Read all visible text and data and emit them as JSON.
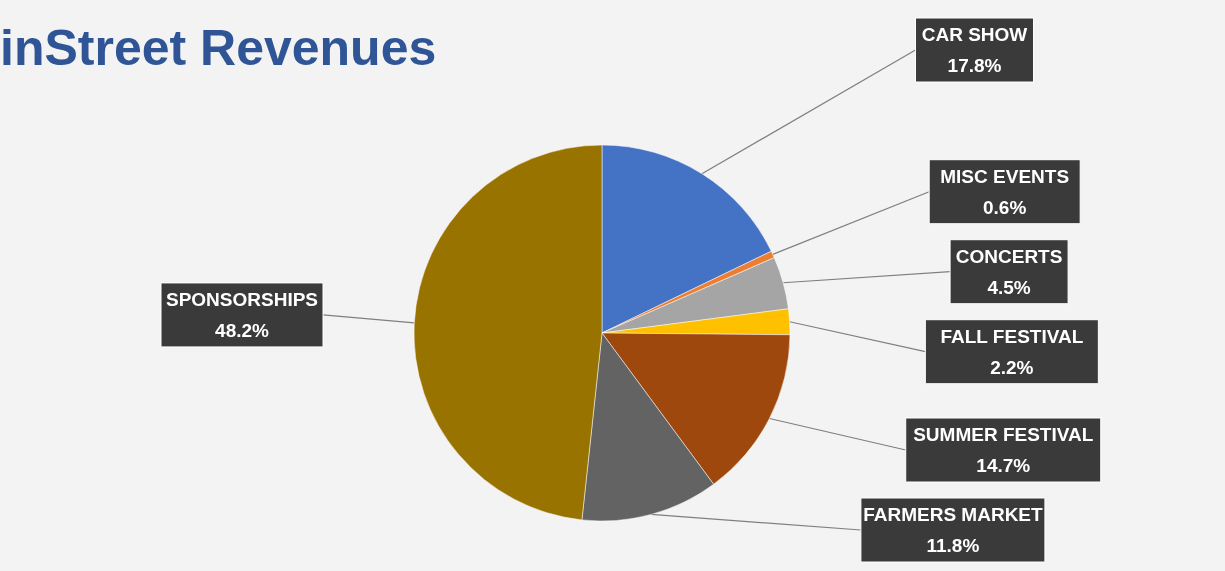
{
  "chart_data": {
    "type": "pie",
    "title": "inStreet Revenues",
    "categories": [
      "CAR SHOW",
      "MISC EVENTS",
      "CONCERTS",
      "FALL FESTIVAL",
      "SUMMER FESTIVAL",
      "FARMERS MARKET",
      "SPONSORSHIPS"
    ],
    "values": [
      17.8,
      0.6,
      4.5,
      2.2,
      14.7,
      11.8,
      48.2
    ],
    "colors": [
      "#4472c4",
      "#ed7d31",
      "#a5a5a5",
      "#ffc000",
      "#9e480e",
      "#636363",
      "#997300"
    ],
    "value_labels": [
      "17.8%",
      "0.6%",
      "4.5%",
      "2.2%",
      "14.7%",
      "11.8%",
      "48.2%"
    ]
  }
}
